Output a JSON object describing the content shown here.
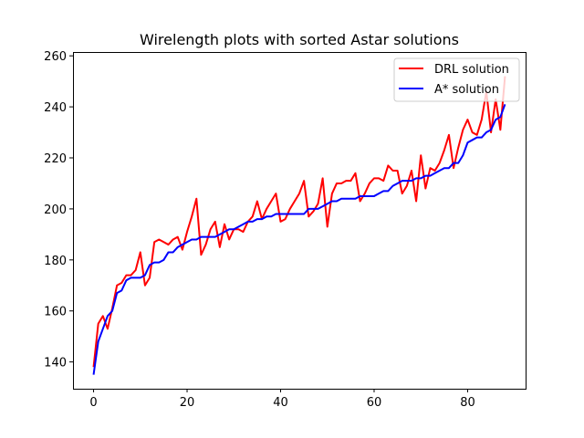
{
  "chart_data": {
    "type": "line",
    "title": "Wirelength plots with sorted Astar solutions",
    "xlabel": "",
    "ylabel": "",
    "xlim": [
      -4.4,
      92.4
    ],
    "ylim": [
      129.5,
      261.5
    ],
    "xticks": [
      0,
      20,
      40,
      60,
      80
    ],
    "yticks": [
      140,
      160,
      180,
      200,
      220,
      240,
      260
    ],
    "grid": false,
    "legend": "top-right",
    "series": [
      {
        "name": "DRL solution",
        "color": "#ff0000",
        "x": [
          0,
          1,
          2,
          3,
          4,
          5,
          6,
          7,
          8,
          9,
          10,
          11,
          12,
          13,
          14,
          15,
          16,
          17,
          18,
          19,
          20,
          21,
          22,
          23,
          24,
          25,
          26,
          27,
          28,
          29,
          30,
          31,
          32,
          33,
          34,
          35,
          36,
          37,
          38,
          39,
          40,
          41,
          42,
          43,
          44,
          45,
          46,
          47,
          48,
          49,
          50,
          51,
          52,
          53,
          54,
          55,
          56,
          57,
          58,
          59,
          60,
          61,
          62,
          63,
          64,
          65,
          66,
          67,
          68,
          69,
          70,
          71,
          72,
          73,
          74,
          75,
          76,
          77,
          78,
          79,
          80,
          81,
          82,
          83,
          84,
          85,
          86,
          87,
          88
        ],
        "values": [
          138,
          155,
          158,
          153,
          161,
          170,
          171,
          174,
          174,
          176,
          183,
          170,
          173,
          187,
          188,
          187,
          186,
          188,
          189,
          184,
          191,
          197,
          204,
          182,
          186,
          192,
          195,
          185,
          194,
          188,
          192,
          192,
          191,
          195,
          197,
          203,
          196,
          200,
          203,
          206,
          195,
          196,
          200,
          203,
          206,
          211,
          197,
          199,
          202,
          212,
          193,
          206,
          210,
          210,
          211,
          211,
          214,
          203,
          206,
          210,
          212,
          212,
          211,
          217,
          215,
          215,
          206,
          209,
          215,
          203,
          221,
          208,
          216,
          215,
          218,
          223,
          229,
          216,
          224,
          231,
          235,
          230,
          229,
          235,
          246,
          230,
          243,
          231,
          252
        ]
      },
      {
        "name": "A* solution",
        "color": "#0000ff",
        "x": [
          0,
          1,
          2,
          3,
          4,
          5,
          6,
          7,
          8,
          9,
          10,
          11,
          12,
          13,
          14,
          15,
          16,
          17,
          18,
          19,
          20,
          21,
          22,
          23,
          24,
          25,
          26,
          27,
          28,
          29,
          30,
          31,
          32,
          33,
          34,
          35,
          36,
          37,
          38,
          39,
          40,
          41,
          42,
          43,
          44,
          45,
          46,
          47,
          48,
          49,
          50,
          51,
          52,
          53,
          54,
          55,
          56,
          57,
          58,
          59,
          60,
          61,
          62,
          63,
          64,
          65,
          66,
          67,
          68,
          69,
          70,
          71,
          72,
          73,
          74,
          75,
          76,
          77,
          78,
          79,
          80,
          81,
          82,
          83,
          84,
          85,
          86,
          87,
          88
        ],
        "values": [
          135,
          148,
          153,
          158,
          160,
          167,
          168,
          172,
          173,
          173,
          173,
          174,
          178,
          179,
          179,
          180,
          183,
          183,
          185,
          186,
          187,
          188,
          188,
          189,
          189,
          189,
          189,
          190,
          191,
          192,
          192,
          193,
          194,
          195,
          195,
          196,
          196,
          197,
          197,
          198,
          198,
          198,
          198,
          198,
          198,
          198,
          200,
          200,
          200,
          201,
          202,
          203,
          203,
          204,
          204,
          204,
          204,
          205,
          205,
          205,
          205,
          206,
          207,
          207,
          209,
          210,
          211,
          211,
          211,
          212,
          212,
          213,
          213,
          214,
          215,
          216,
          216,
          218,
          218,
          221,
          226,
          227,
          228,
          228,
          230,
          231,
          235,
          236,
          241
        ]
      }
    ]
  }
}
